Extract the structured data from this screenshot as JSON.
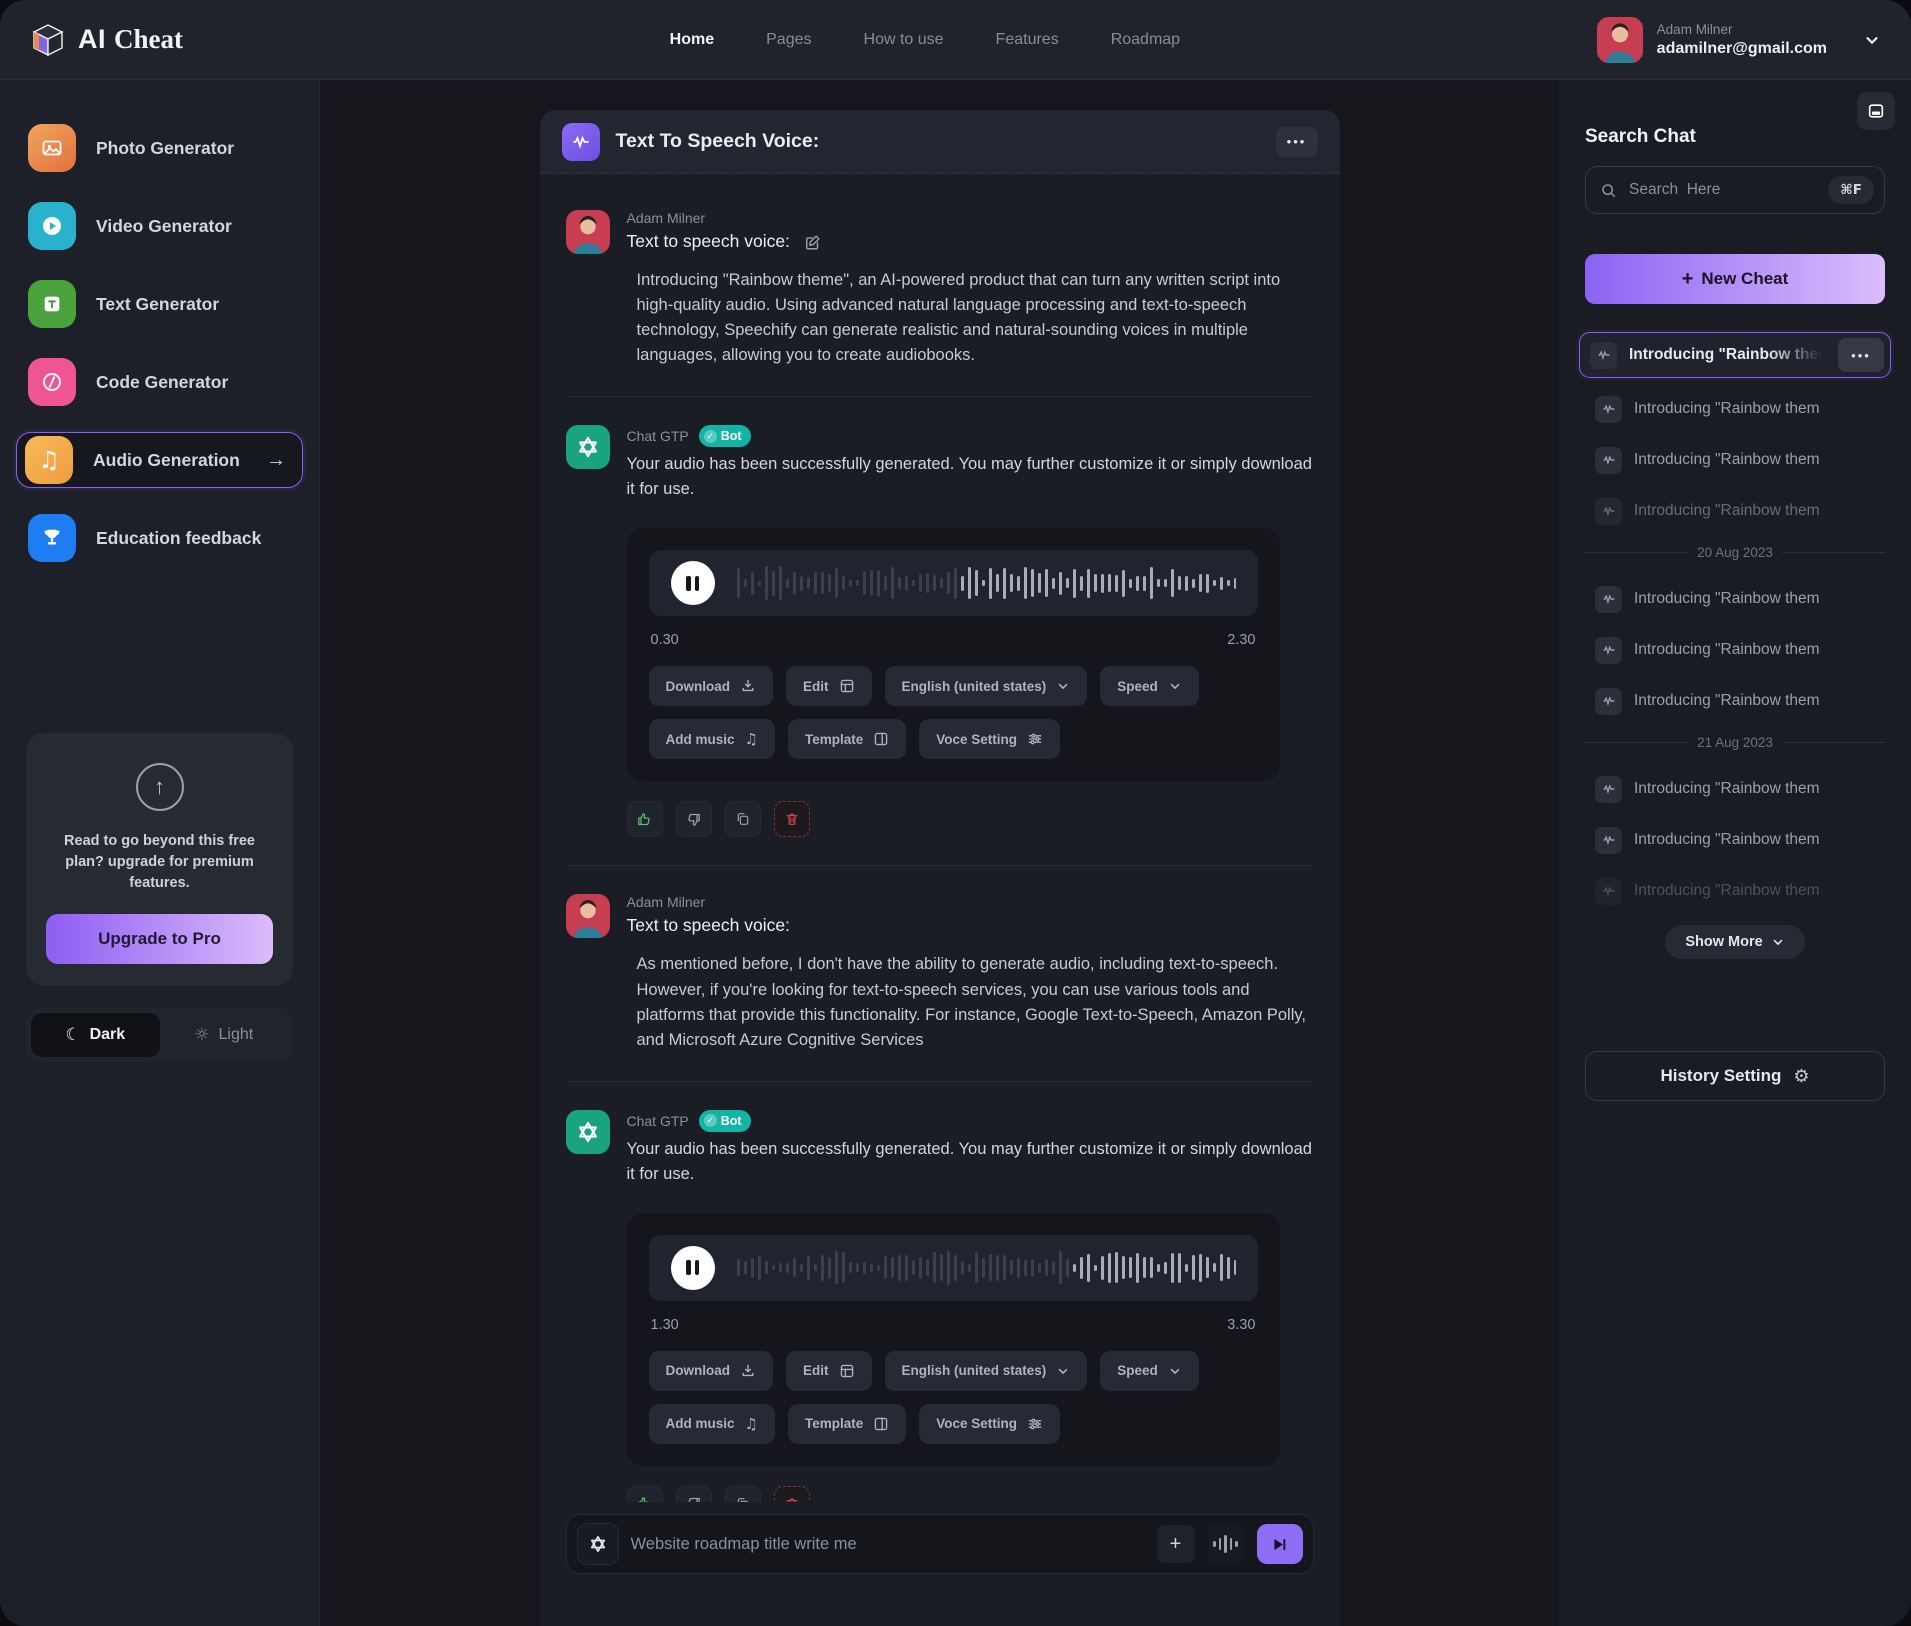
{
  "brand": {
    "part1": "AI",
    "part2": "Cheat"
  },
  "topnav": {
    "items": [
      {
        "label": "Home"
      },
      {
        "label": "Pages"
      },
      {
        "label": "How to use"
      },
      {
        "label": "Features"
      },
      {
        "label": "Roadmap"
      }
    ]
  },
  "user": {
    "name": "Adam Milner",
    "email": "adamilner@gmail.com"
  },
  "sidebar": {
    "items": [
      {
        "label": "Photo Generator"
      },
      {
        "label": "Video Generator"
      },
      {
        "label": "Text Generator"
      },
      {
        "label": "Code Generator"
      },
      {
        "label": "Audio Generation"
      },
      {
        "label": "Education feedback"
      }
    ],
    "upgrade": {
      "text": "Read to go beyond this free plan? upgrade for premium features.",
      "button": "Upgrade to Pro"
    },
    "theme": {
      "dark": "Dark",
      "light": "Light"
    }
  },
  "chat": {
    "title": "Text To Speech Voice:",
    "messages": {
      "m1": {
        "author": "Adam Milner",
        "title": "Text to speech voice:",
        "body": "Introducing \"Rainbow theme\", an AI-powered product that can turn any written script into high-quality audio. Using advanced natural language processing and text-to-speech technology, Speechify can generate realistic and natural-sounding voices in multiple languages, allowing you to create audiobooks."
      },
      "m2": {
        "author": "Chat GTP",
        "badge": "Bot",
        "body": "Your audio has been successfully generated. You may further customize it or simply download it for use.",
        "time_start": "0.30",
        "time_end": "2.30"
      },
      "m3": {
        "author": "Adam Milner",
        "title": "Text to speech voice:",
        "body": "As mentioned before, I don't have the ability to generate audio, including text-to-speech. However, if you're looking for text-to-speech services, you can use various tools and platforms that provide this functionality. For instance, Google Text-to-Speech, Amazon Polly, and Microsoft Azure Cognitive Services"
      },
      "m4": {
        "author": "Chat GTP",
        "badge": "Bot",
        "body": "Your audio has been successfully generated. You may further customize it or simply download it for use.",
        "time_start": "1.30",
        "time_end": "3.30"
      }
    },
    "player_buttons": {
      "download": "Download",
      "edit": "Edit",
      "language": "English (united states)",
      "speed": "Speed",
      "add_music": "Add music",
      "template": "Template",
      "voice_setting": "Voce Setting"
    },
    "composer": {
      "placeholder": "Website roadmap title write me"
    }
  },
  "right_panel": {
    "search_title": "Search Chat",
    "search_placeholder": "Search  Here",
    "shortcut": "⌘F",
    "new_cheat": "New Cheat",
    "selected_chat": "Introducing \"Rainbow theme\", a",
    "chat_item": "Introducing \"Rainbow them",
    "divider1": "20 Aug 2023",
    "divider2": "21 Aug 2023",
    "show_more": "Show More",
    "history_setting": "History Setting"
  },
  "icons": {
    "moon": "☾",
    "sun": "☼",
    "up_arrow": "↑",
    "arrow_right": "→",
    "plus": "+",
    "dots": "•••",
    "music_note": "♫",
    "check": "✓",
    "gear": "⚙"
  },
  "colors": {
    "accent": "#8b5cf6",
    "accent_light": "#dcbcfb",
    "bot_badge": "#12b5a4",
    "danger": "#d8454f",
    "success": "#5bbf6a"
  }
}
